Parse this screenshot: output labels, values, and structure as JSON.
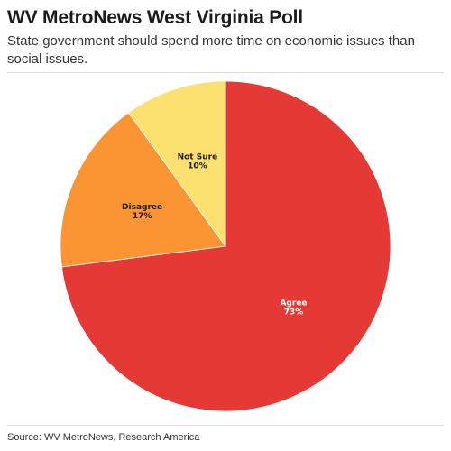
{
  "header": {
    "title": "WV MetroNews West Virginia Poll",
    "subtitle": "State government should spend more time on economic issues than social issues."
  },
  "footer": {
    "source": "Source: WV MetroNews, Research America"
  },
  "chart_data": {
    "type": "pie",
    "slices": [
      {
        "label": "Agree",
        "value": 73,
        "value_label": "73%",
        "color": "#e53935",
        "text_color": "#ffffff"
      },
      {
        "label": "Disagree",
        "value": 17,
        "value_label": "17%",
        "color": "#fb9432",
        "text_color": "#1b1b1b"
      },
      {
        "label": "Not Sure",
        "value": 10,
        "value_label": "10%",
        "color": "#fce070",
        "text_color": "#1b1b1b"
      }
    ],
    "start": "12 o'clock",
    "direction": "clockwise"
  }
}
